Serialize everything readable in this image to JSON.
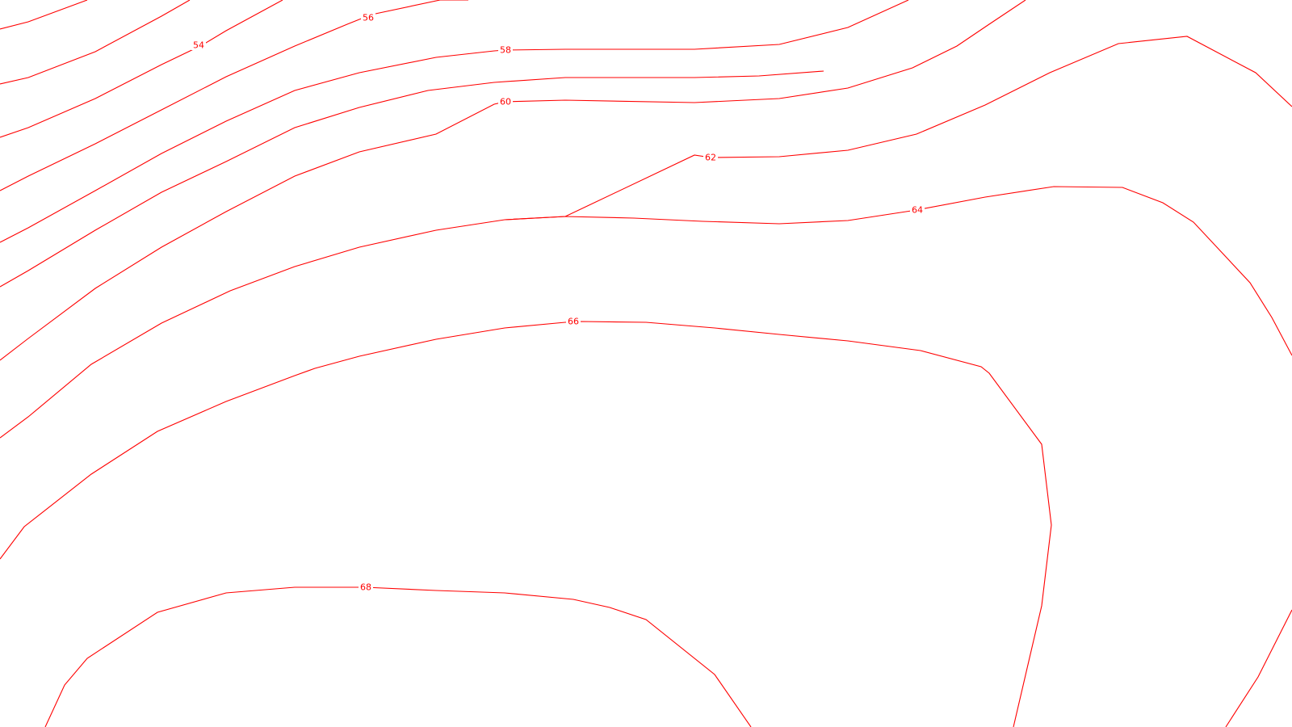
{
  "map": {
    "type": "contour-map",
    "line_color": "#ff0000",
    "background": "#ffffff",
    "contour_interval": 2,
    "labels": {
      "c54": "54",
      "c56": "56",
      "c58": "58",
      "c60": "60",
      "c62": "62",
      "c64": "64",
      "c66": "66",
      "c68": "68"
    }
  }
}
